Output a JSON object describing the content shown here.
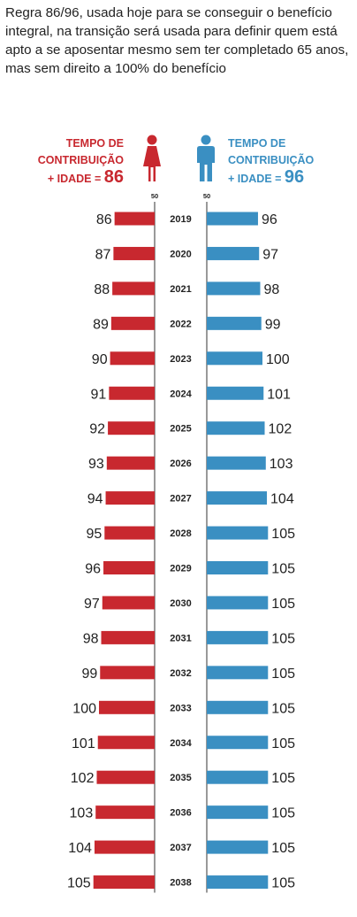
{
  "intro_text": "Regra 86/96, usada hoje para se conseguir o benefício integral, na transição será usada para definir quem está apto a se aposentar mesmo sem ter completado 65 anos, mas sem direito a 100% do benefício",
  "legend": {
    "women": {
      "line1": "TEMPO DE",
      "line2": "CONTRIBUIÇÃO",
      "line3": "+ IDADE = ",
      "value": "86",
      "icon": "woman-icon",
      "color": "#c8282f"
    },
    "men": {
      "line1": "TEMPO DE",
      "line2": "CONTRIBUIÇÃO",
      "line3": "+ IDADE = ",
      "value": "96",
      "icon": "man-icon",
      "color": "#3a8fc2"
    }
  },
  "chart_data": {
    "type": "bar",
    "axis_base_label_left": "50",
    "axis_base_label_right": "50",
    "axis_min": 50,
    "categories": [
      "2019",
      "2020",
      "2021",
      "2022",
      "2023",
      "2024",
      "2025",
      "2026",
      "2027",
      "2028",
      "2029",
      "2030",
      "2031",
      "2032",
      "2033",
      "2034",
      "2035",
      "2036",
      "2037",
      "2038"
    ],
    "series": [
      {
        "values": [
          86,
          87,
          88,
          89,
          90,
          91,
          92,
          93,
          94,
          95,
          96,
          97,
          98,
          99,
          100,
          101,
          102,
          103,
          104,
          105
        ],
        "color": "#c8282f"
      },
      {
        "values": [
          96,
          97,
          98,
          99,
          100,
          101,
          102,
          103,
          104,
          105,
          105,
          105,
          105,
          105,
          105,
          105,
          105,
          105,
          105,
          105
        ],
        "color": "#3a8fc2"
      }
    ]
  }
}
